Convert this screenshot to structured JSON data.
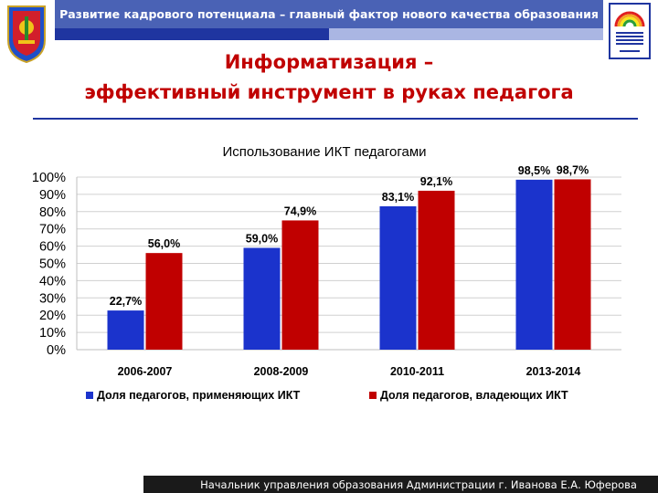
{
  "header": {
    "title": "Развитие кадрового потенциала – главный фактор нового качества образования",
    "colors": {
      "band": "#4a62b5",
      "band_dark": "#1f35a0",
      "band_light": "#aab6e3"
    }
  },
  "crest": {
    "icon": "city-coat-of-arms-icon"
  },
  "logo": {
    "icon": "education-department-rainbow-logo-icon"
  },
  "slide": {
    "title_line1": "Информатизация –",
    "title_line2": "эффективный инструмент в руках педагога",
    "title_color": "#c00000"
  },
  "chart_data": {
    "type": "bar",
    "title": "Использование ИКТ педагогами",
    "categories": [
      "2006-2007",
      "2008-2009",
      "2010-2011",
      "2013-2014"
    ],
    "series": [
      {
        "name": "Доля педагогов, применяющих ИКТ",
        "values": [
          22.7,
          59.0,
          83.1,
          98.5
        ],
        "color": "#1b33cc",
        "labels": [
          "22,7%",
          "59,0%",
          "83,1%",
          "98,5%"
        ]
      },
      {
        "name": "Доля педагогов, владеющих ИКТ",
        "values": [
          56.0,
          74.9,
          92.1,
          98.7
        ],
        "color": "#c00000",
        "labels": [
          "56,0%",
          "74,9%",
          "92,1%",
          "98,7%"
        ]
      }
    ],
    "ylim": [
      0,
      100
    ],
    "yticks": [
      "0%",
      "10%",
      "20%",
      "30%",
      "40%",
      "50%",
      "60%",
      "70%",
      "80%",
      "90%",
      "100%"
    ],
    "grid": true,
    "legend": "bottom"
  },
  "footer": {
    "text": "Начальник управления образования Администрации  г. Иванова     Е.А. Юферова"
  }
}
